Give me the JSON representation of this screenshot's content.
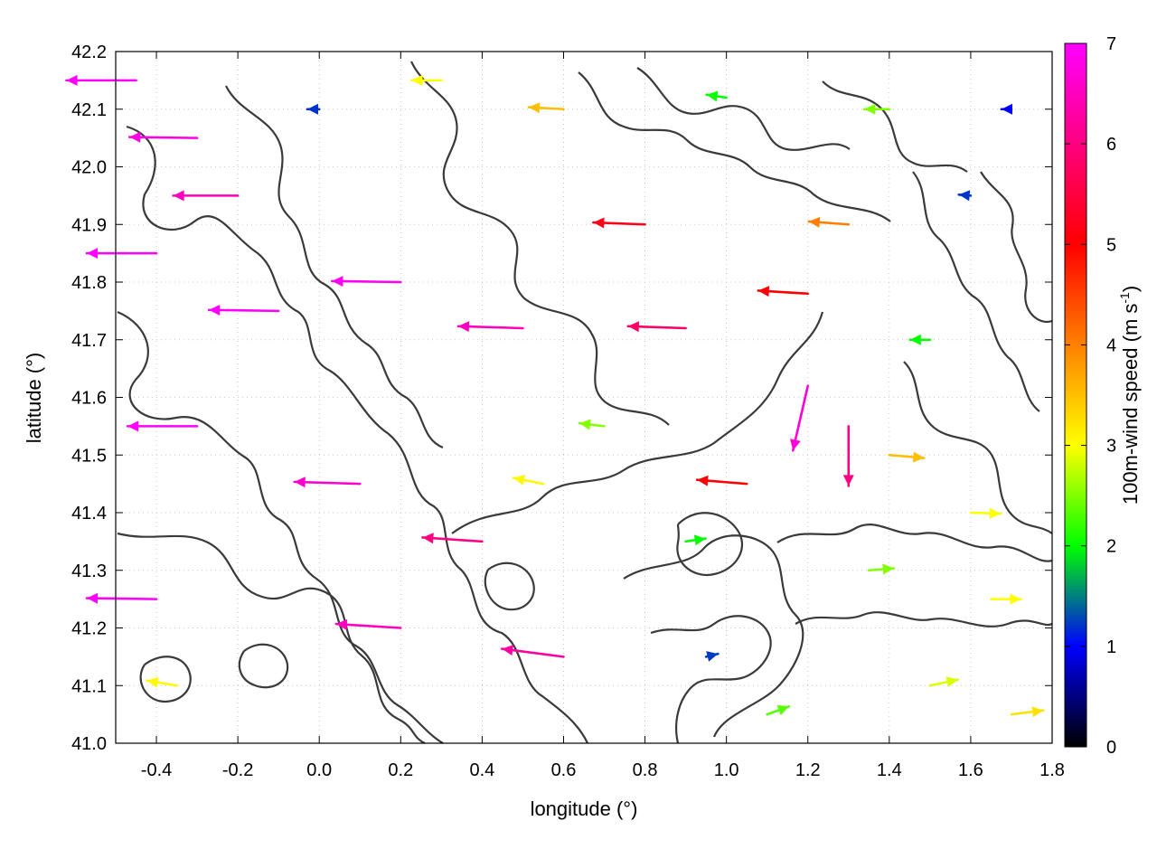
{
  "chart_data": {
    "type": "vector-field",
    "xlabel": "longitude (°)",
    "ylabel": "latitude (°)",
    "xlim": [
      -0.5,
      1.8
    ],
    "ylim": [
      41.0,
      42.2
    ],
    "x_ticks": [
      "-0.4",
      "-0.2",
      "0.0",
      "0.2",
      "0.4",
      "0.6",
      "0.8",
      "1.0",
      "1.2",
      "1.4",
      "1.6",
      "1.8"
    ],
    "x_tick_values": [
      -0.4,
      -0.2,
      0.0,
      0.2,
      0.4,
      0.6,
      0.8,
      1.0,
      1.2,
      1.4,
      1.6,
      1.8
    ],
    "y_ticks": [
      "41.0",
      "41.1",
      "41.2",
      "41.3",
      "41.4",
      "41.5",
      "41.6",
      "41.7",
      "41.8",
      "41.9",
      "42.0",
      "42.1",
      "42.2"
    ],
    "y_tick_values": [
      41.0,
      41.1,
      41.2,
      41.3,
      41.4,
      41.5,
      41.6,
      41.7,
      41.8,
      41.9,
      42.0,
      42.1,
      42.2
    ],
    "grid": true,
    "colorbar": {
      "label_main": "100m-wind speed (m s",
      "label_sup": "-1",
      "label_end": ")",
      "range": [
        0,
        7
      ],
      "ticks": [
        "0",
        "1",
        "2",
        "3",
        "4",
        "5",
        "6",
        "7"
      ],
      "tick_values": [
        0,
        1,
        2,
        3,
        4,
        5,
        6,
        7
      ],
      "palette": [
        "#000000",
        "#0000ff",
        "#00ff00",
        "#ffff00",
        "#ff8000",
        "#ff0000",
        "#ff00ff"
      ]
    },
    "series": [
      {
        "type": "vectors",
        "speed_units": "m s-1",
        "vectors": [
          {
            "lon": -0.45,
            "lat": 42.15,
            "u": -7.0,
            "v": 0.0
          },
          {
            "lon": -0.3,
            "lat": 42.05,
            "u": -6.8,
            "v": 0.1
          },
          {
            "lon": -0.2,
            "lat": 41.95,
            "u": -6.5,
            "v": 0.0
          },
          {
            "lon": -0.4,
            "lat": 41.85,
            "u": -7.0,
            "v": 0.0
          },
          {
            "lon": -0.1,
            "lat": 41.75,
            "u": -7.0,
            "v": 0.1
          },
          {
            "lon": 0.2,
            "lat": 41.8,
            "u": -6.9,
            "v": 0.1
          },
          {
            "lon": 0.5,
            "lat": 41.72,
            "u": -6.5,
            "v": 0.2
          },
          {
            "lon": 0.9,
            "lat": 41.72,
            "u": -5.8,
            "v": 0.2
          },
          {
            "lon": 1.2,
            "lat": 41.78,
            "u": -5.0,
            "v": 0.3
          },
          {
            "lon": -0.3,
            "lat": 41.55,
            "u": -7.0,
            "v": 0.0
          },
          {
            "lon": 0.1,
            "lat": 41.45,
            "u": -6.6,
            "v": 0.2
          },
          {
            "lon": 0.4,
            "lat": 41.35,
            "u": -6.0,
            "v": 0.4
          },
          {
            "lon": -0.4,
            "lat": 41.25,
            "u": -7.0,
            "v": 0.1
          },
          {
            "lon": 0.2,
            "lat": 41.2,
            "u": -6.5,
            "v": 0.4
          },
          {
            "lon": 0.6,
            "lat": 41.15,
            "u": -6.2,
            "v": 0.8
          },
          {
            "lon": -0.35,
            "lat": 41.1,
            "u": -3.0,
            "v": 0.5
          },
          {
            "lon": 1.2,
            "lat": 41.62,
            "u": -1.5,
            "v": -6.5
          },
          {
            "lon": 1.3,
            "lat": 41.55,
            "u": 0.0,
            "v": -6.0
          },
          {
            "lon": 0.9,
            "lat": 41.35,
            "u": 2.0,
            "v": 0.3
          },
          {
            "lon": 1.35,
            "lat": 41.3,
            "u": 2.5,
            "v": 0.2
          },
          {
            "lon": 1.65,
            "lat": 41.25,
            "u": 3.0,
            "v": 0.0
          },
          {
            "lon": 1.5,
            "lat": 41.1,
            "u": 2.8,
            "v": 0.6
          },
          {
            "lon": 1.7,
            "lat": 41.05,
            "u": 3.2,
            "v": 0.4
          },
          {
            "lon": 1.1,
            "lat": 41.05,
            "u": 2.2,
            "v": 0.8
          },
          {
            "lon": 0.95,
            "lat": 41.15,
            "u": 1.2,
            "v": 0.3
          },
          {
            "lon": 1.4,
            "lat": 41.5,
            "u": 3.5,
            "v": -0.3
          },
          {
            "lon": 1.6,
            "lat": 41.4,
            "u": 3.0,
            "v": -0.1
          },
          {
            "lon": 1.5,
            "lat": 41.7,
            "u": -2.0,
            "v": 0.0
          },
          {
            "lon": 1.6,
            "lat": 41.95,
            "u": -1.2,
            "v": 0.1
          },
          {
            "lon": 1.7,
            "lat": 42.1,
            "u": -1.0,
            "v": 0.0
          },
          {
            "lon": 1.4,
            "lat": 42.1,
            "u": -2.5,
            "v": 0.0
          },
          {
            "lon": 1.0,
            "lat": 42.12,
            "u": -2.0,
            "v": 0.3
          },
          {
            "lon": 0.6,
            "lat": 42.1,
            "u": -3.5,
            "v": 0.2
          },
          {
            "lon": 0.3,
            "lat": 42.15,
            "u": -3.0,
            "v": 0.0
          },
          {
            "lon": 0.0,
            "lat": 42.1,
            "u": -1.2,
            "v": 0.0
          },
          {
            "lon": 0.8,
            "lat": 41.9,
            "u": -5.2,
            "v": 0.2
          },
          {
            "lon": 1.3,
            "lat": 41.9,
            "u": -4.0,
            "v": 0.3
          },
          {
            "lon": 0.7,
            "lat": 41.55,
            "u": -2.5,
            "v": 0.3
          },
          {
            "lon": 0.55,
            "lat": 41.45,
            "u": -3.0,
            "v": 0.6
          },
          {
            "lon": 1.05,
            "lat": 41.45,
            "u": -5.0,
            "v": 0.4
          }
        ]
      }
    ]
  }
}
